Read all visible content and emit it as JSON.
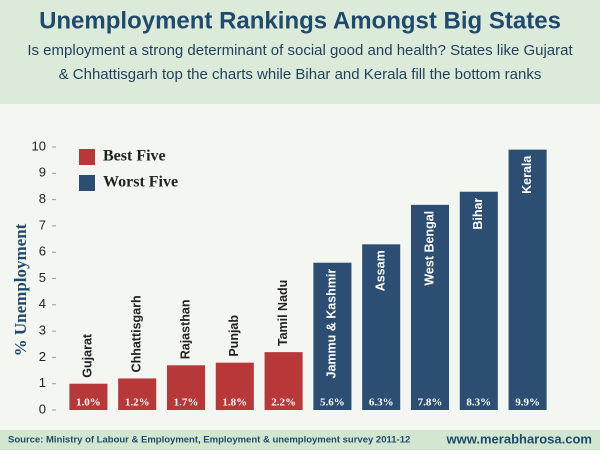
{
  "chart_data": {
    "type": "bar",
    "title": "Unemployment Rankings Amongst Big States",
    "subtitle": [
      "Is employment a strong determinant of social good and health? States like Gujarat",
      "& Chhattisgarh top the charts while Bihar and Kerala fill the bottom ranks"
    ],
    "y_label": "% Unemployment",
    "source": "Source: Ministry of Labour & Employment, Employment & unemployment survey 2011-12",
    "website": "www.merabharosa.com",
    "categories": [
      "Gujarat",
      "Chhattisgarh",
      "Rajasthan",
      "Punjab",
      "Tamil Nadu",
      "Jammu & Kashmir",
      "Assam",
      "West Bengal",
      "Bihar",
      "Kerala"
    ],
    "series": [
      {
        "name": "Best Five",
        "color": "#b8383a",
        "values": [
          1.0,
          1.2,
          1.7,
          1.8,
          2.2,
          null,
          null,
          null,
          null,
          null
        ],
        "value_labels": [
          "1.0%",
          "1.2%",
          "1.7%",
          "1.8%",
          "2.2%",
          null,
          null,
          null,
          null,
          null
        ]
      },
      {
        "name": "Worst Five",
        "color": "#2b4e72",
        "values": [
          null,
          null,
          null,
          null,
          null,
          5.6,
          6.3,
          7.8,
          8.3,
          9.9
        ],
        "value_labels": [
          null,
          null,
          null,
          null,
          null,
          "5.6%",
          "6.3%",
          "7.8%",
          "8.3%",
          "9.9%"
        ]
      }
    ],
    "ylim": [
      0,
      10
    ],
    "yticks": [
      0,
      1,
      2,
      3,
      4,
      5,
      6,
      7,
      8,
      9,
      10
    ],
    "legend": "upper left"
  }
}
